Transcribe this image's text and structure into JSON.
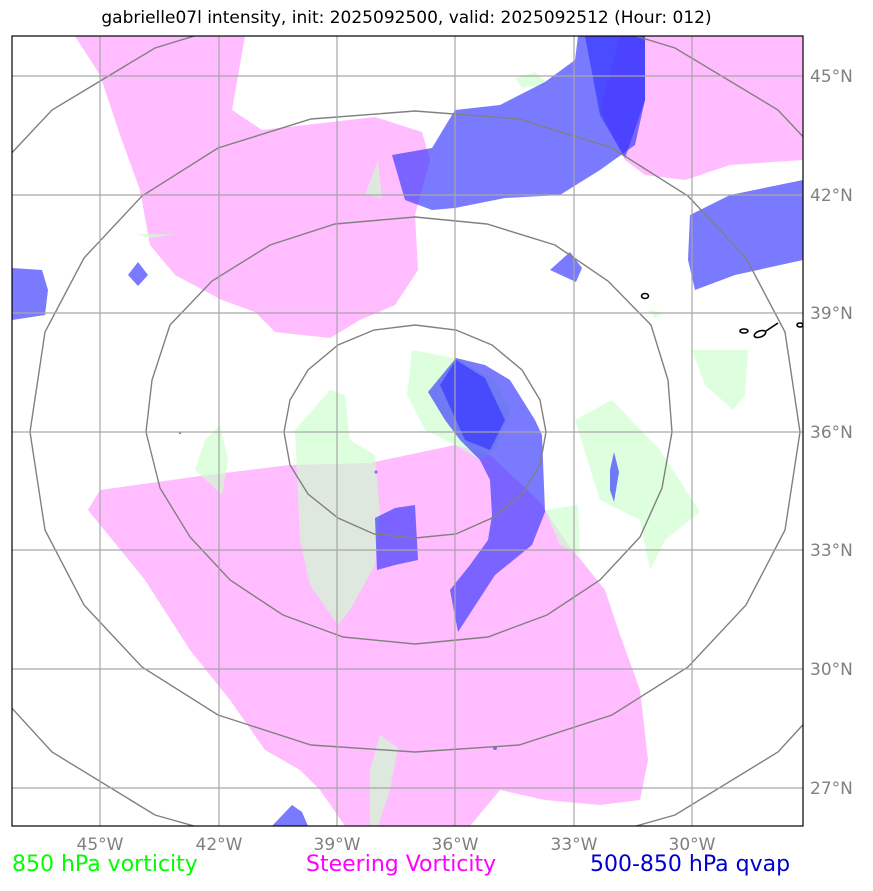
{
  "title": "gabrielle07l intensity, init: 2025092500, valid: 2025092512 (Hour: 012)",
  "map": {
    "lon_ticks": [
      "45°W",
      "42°W",
      "39°W",
      "36°W",
      "33°W",
      "30°W"
    ],
    "lat_ticks": [
      "45°N",
      "42°N",
      "39°N",
      "36°N",
      "33°N",
      "30°N",
      "27°N"
    ],
    "layers": {
      "vorticity_850": {
        "color": "#ccffcc",
        "opacity": 0.65
      },
      "steering_vorticity": {
        "color": "#ff99ff",
        "opacity": 0.65
      },
      "qvap_500_850": {
        "color": "#3333ff",
        "opacity": 0.65
      }
    },
    "range_rings_color": "#808080",
    "gridline_color": "#a6a6a6"
  },
  "legend": [
    {
      "label": "850 hPa vorticity",
      "color": "#00ff00"
    },
    {
      "label": "Steering Vorticity",
      "color": "#ff00ff"
    },
    {
      "label": "500-850 hPa qvap",
      "color": "#0000cc"
    }
  ]
}
